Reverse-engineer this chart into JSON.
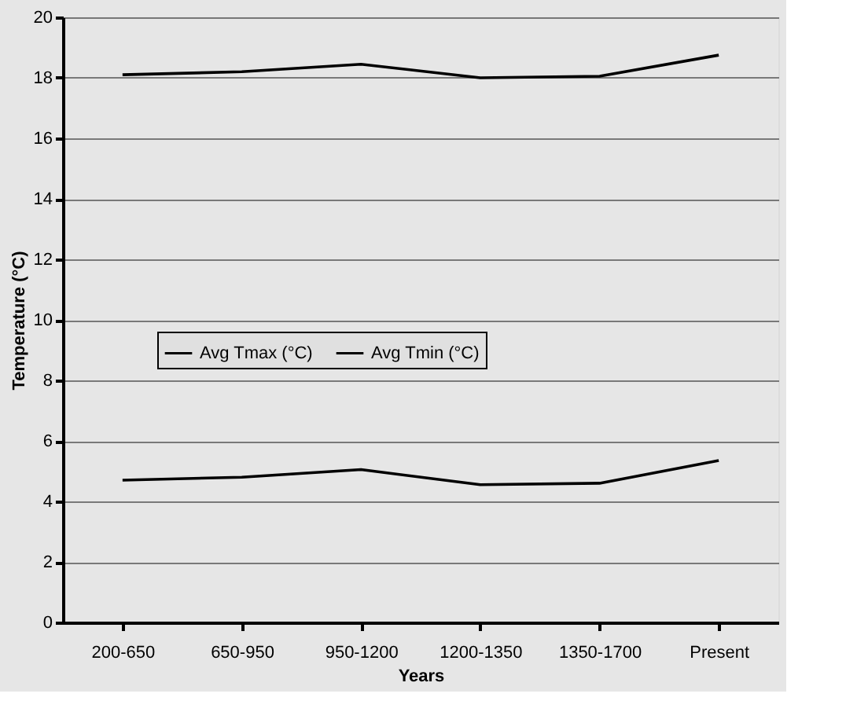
{
  "chart_data": {
    "type": "line",
    "xlabel": "Years",
    "ylabel": "Temperature (°C)",
    "categories": [
      "200-650",
      "650-950",
      "950-1200",
      "1200-1350",
      "1350-1700",
      "Present"
    ],
    "series": [
      {
        "name": "Avg Tmax (°C)",
        "color": "#000000",
        "values": [
          18.1,
          18.2,
          18.45,
          18.0,
          18.05,
          18.75
        ]
      },
      {
        "name": "Avg Tmin (°C)",
        "color": "#000000",
        "values": [
          4.7,
          4.8,
          5.05,
          4.55,
          4.6,
          5.35
        ]
      }
    ],
    "ylim": [
      0,
      20
    ],
    "yticks": [
      0,
      2,
      4,
      6,
      8,
      10,
      12,
      14,
      16,
      18,
      20
    ],
    "grid": "y",
    "legend": "left",
    "marker": "none",
    "line_style": "solid"
  }
}
